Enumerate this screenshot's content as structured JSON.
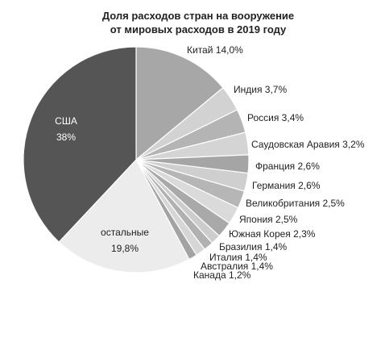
{
  "chart_data": {
    "type": "pie",
    "title_lines": [
      "Доля расходов стран на вооружение",
      "от мировых расходов в 2019 году"
    ],
    "slices": [
      {
        "name": "Китай",
        "value_text": "14,0%",
        "value": 14.0,
        "color": "#a7a7a7"
      },
      {
        "name": "Индия",
        "value_text": "3,7%",
        "value": 3.7,
        "color": "#d2d2d2"
      },
      {
        "name": "Россия",
        "value_text": "3,4%",
        "value": 3.4,
        "color": "#b4b4b4"
      },
      {
        "name": "Саудовская Аравия",
        "value_text": "3,2%",
        "value": 3.2,
        "color": "#d4d4d4"
      },
      {
        "name": "Франция",
        "value_text": "2,6%",
        "value": 2.6,
        "color": "#a5a5a5"
      },
      {
        "name": "Германия",
        "value_text": "2,6%",
        "value": 2.6,
        "color": "#cfcfcf"
      },
      {
        "name": "Великобритания",
        "value_text": "2,5%",
        "value": 2.5,
        "color": "#b6b6b6"
      },
      {
        "name": "Япония",
        "value_text": "2,5%",
        "value": 2.5,
        "color": "#dadada"
      },
      {
        "name": "Южная Корея",
        "value_text": "2,3%",
        "value": 2.3,
        "color": "#a9a9a9"
      },
      {
        "name": "Бразилия",
        "value_text": "1,4%",
        "value": 1.4,
        "color": "#cdcdcd"
      },
      {
        "name": "Италия",
        "value_text": "1,4%",
        "value": 1.4,
        "color": "#b1b1b1"
      },
      {
        "name": "Австралия",
        "value_text": "1,4%",
        "value": 1.4,
        "color": "#d6d6d6"
      },
      {
        "name": "Канада",
        "value_text": "1,2%",
        "value": 1.2,
        "color": "#a3a3a3"
      },
      {
        "name": "остальные",
        "value_text": "19,8%",
        "value": 19.8,
        "color": "#ececec"
      },
      {
        "name": "США",
        "value_text": "38%",
        "value": 38.0,
        "color": "#555555"
      }
    ]
  }
}
